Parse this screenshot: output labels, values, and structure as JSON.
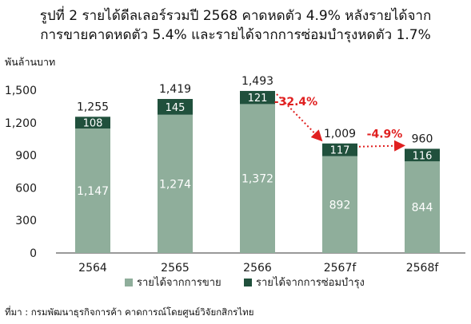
{
  "title_lines": [
    "รูปที่ 2 รายได้ดีลเลอร์รวมปี 2568 คาดหดตัว 4.9% หลังรายได้จาก",
    "การขายคาดหดตัว 5.4% และรายได้จากการซ่อมบำรุงหดตัว 1.7%"
  ],
  "source": "ที่มา : กรมพัฒนาธุรกิจการค้า คาดการณ์โดยศูนย์วิจัยกสิกรไทย",
  "colors": {
    "sales": "#8fae9b",
    "service": "#20503c",
    "arrow": "#e02020",
    "axis": "#333333"
  },
  "chart_data": {
    "type": "bar",
    "stacked": true,
    "ylabel": "พันล้านบาท",
    "ylim": [
      0,
      1500
    ],
    "yticks": [
      "0",
      "300",
      "600",
      "900",
      "1,200",
      "1,500"
    ],
    "yticks_values": [
      0,
      300,
      600,
      900,
      1200,
      1500
    ],
    "categories": [
      "2564",
      "2565",
      "2566",
      "2567f",
      "2568f"
    ],
    "series": [
      {
        "name": "รายได้จากการขาย",
        "values": [
          1147,
          1274,
          1372,
          892,
          844
        ],
        "labels": [
          "1,147",
          "1,274",
          "1,372",
          "892",
          "844"
        ]
      },
      {
        "name": "รายได้จากการซ่อมบำรุง",
        "values": [
          108,
          145,
          121,
          117,
          116
        ],
        "labels": [
          "108",
          "145",
          "121",
          "117",
          "116"
        ]
      }
    ],
    "totals": [
      1255,
      1419,
      1493,
      1009,
      960
    ],
    "total_labels": [
      "1,255",
      "1,419",
      "1,493",
      "1,009",
      "960"
    ],
    "annotations": [
      {
        "text": "-32.4%",
        "from": "2566",
        "to": "2567f"
      },
      {
        "text": "-4.9%",
        "from": "2567f",
        "to": "2568f"
      }
    ],
    "legend_position": "bottom"
  }
}
